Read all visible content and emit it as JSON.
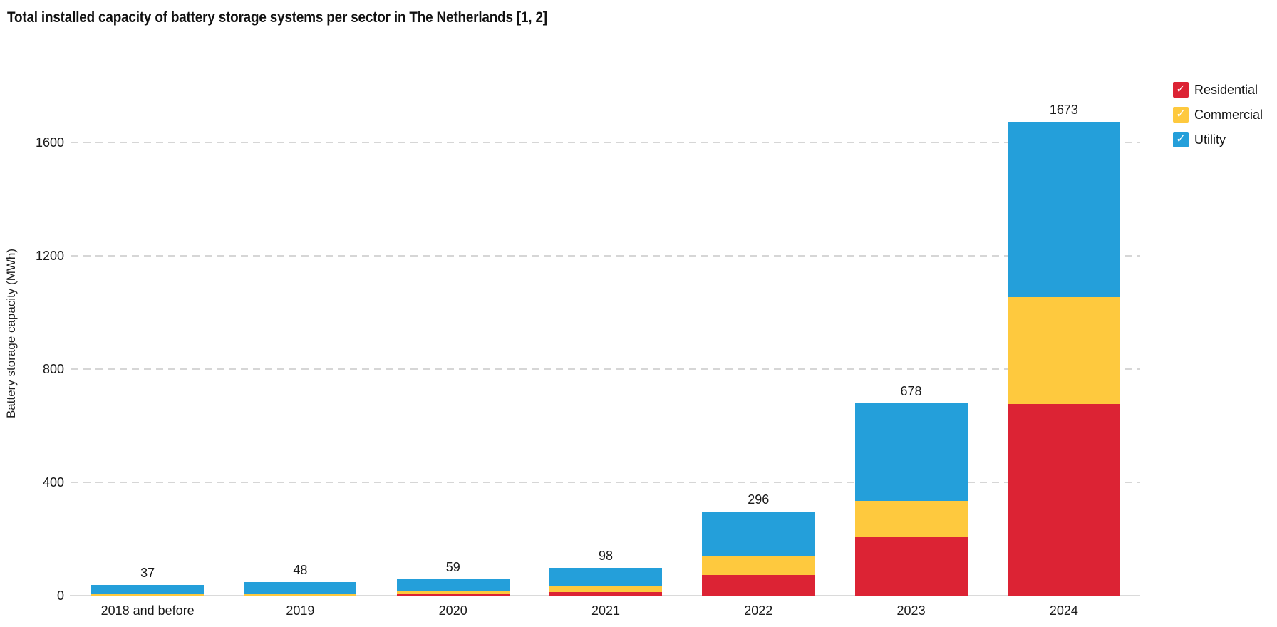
{
  "title": "Total installed capacity of battery storage systems per sector in The Netherlands [1, 2]",
  "legend": {
    "position": "top-right",
    "check_glyph": "✓",
    "items": [
      {
        "label": "Residential",
        "color": "#dc2334",
        "checked": true
      },
      {
        "label": "Commercial",
        "color": "#fec93e",
        "checked": true
      },
      {
        "label": "Utility",
        "color": "#249fda",
        "checked": true
      }
    ]
  },
  "chart_data": {
    "type": "bar",
    "stacked": true,
    "title": "Total installed capacity of battery storage systems per sector in The Netherlands [1, 2]",
    "categories": [
      "2018 and before",
      "2019",
      "2020",
      "2021",
      "2022",
      "2023",
      "2024"
    ],
    "series": [
      {
        "name": "Residential",
        "color": "#dc2334",
        "values": [
          1,
          1,
          5,
          13,
          74,
          206,
          677
        ]
      },
      {
        "name": "Commercial",
        "color": "#fec93e",
        "values": [
          7,
          7,
          11,
          22,
          66,
          129,
          377
        ]
      },
      {
        "name": "Utility",
        "color": "#249fda",
        "values": [
          29,
          40,
          43,
          63,
          156,
          343,
          619
        ]
      }
    ],
    "totals": [
      37,
      48,
      59,
      98,
      296,
      678,
      1673
    ],
    "xlabel": "",
    "ylabel": "Battery storage capacity (MWh)",
    "yticks": [
      0,
      400,
      800,
      1200,
      1600
    ],
    "ylim": [
      0,
      1700
    ],
    "grid": "horizontal-dashed",
    "legend_position": "top-right"
  }
}
